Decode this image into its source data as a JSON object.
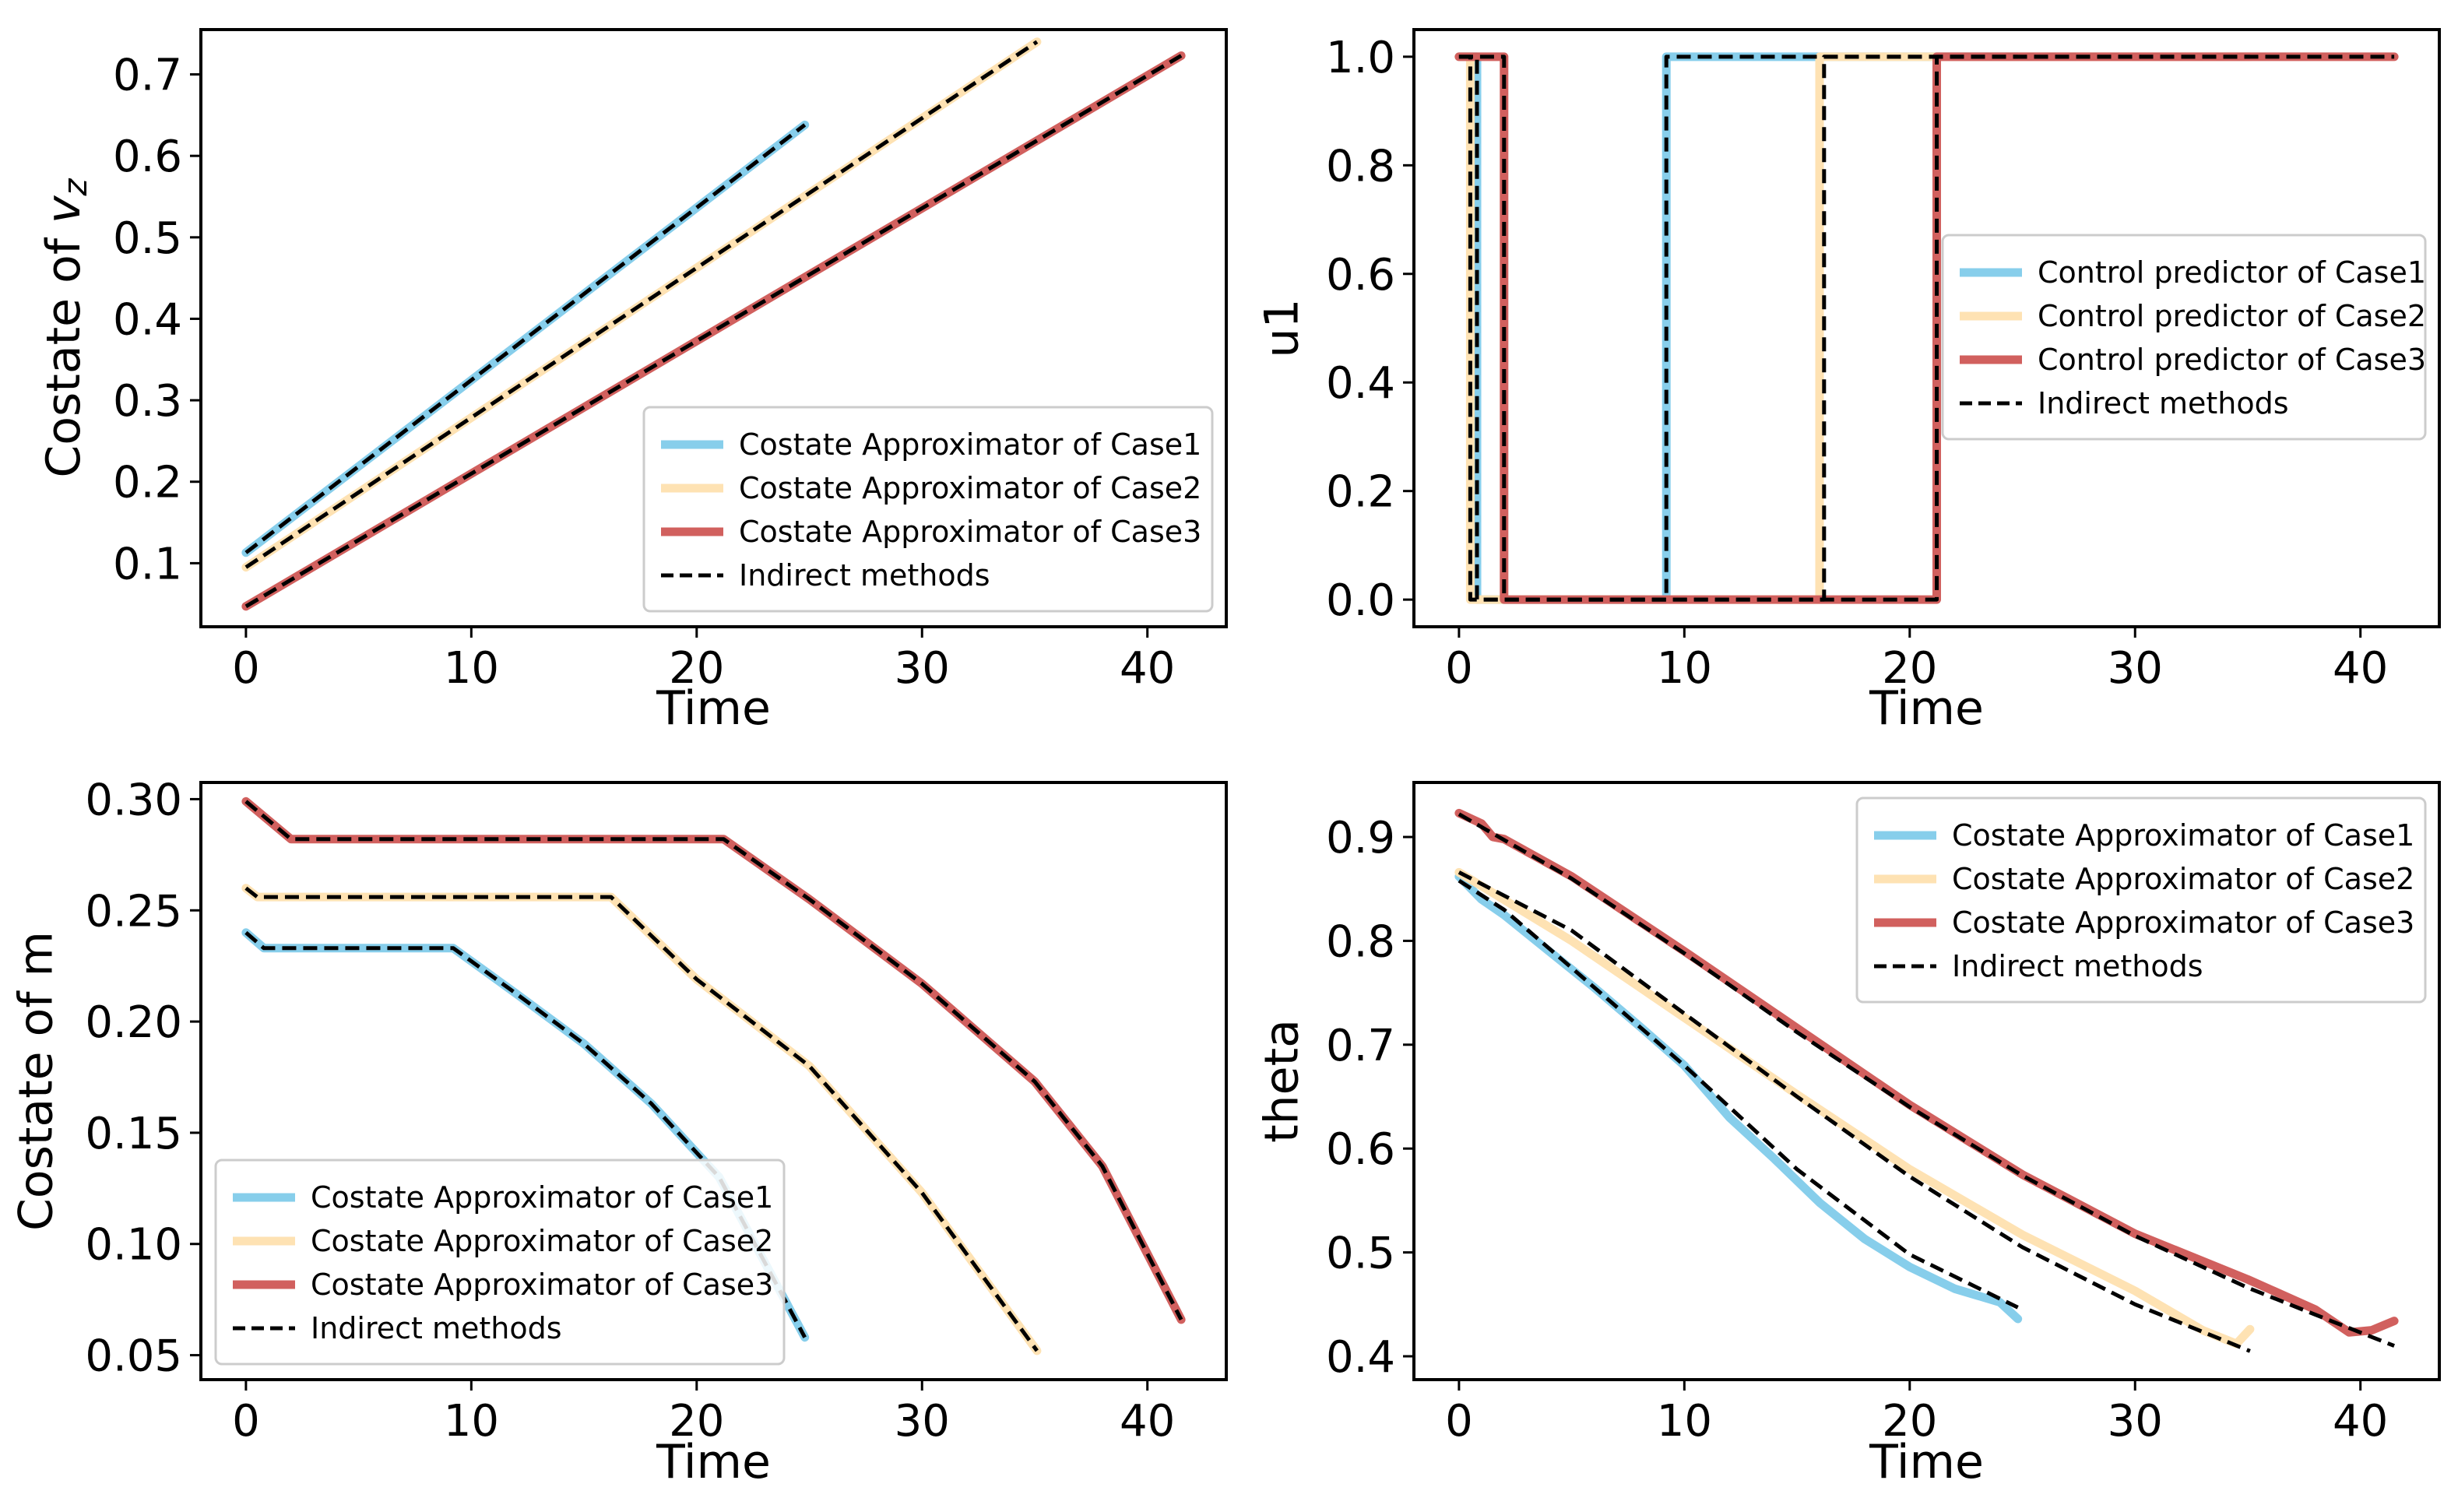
{
  "colors": {
    "case1": "#87ceeb",
    "case2": "#fee2b3",
    "case3": "#d1605e",
    "indirect": "#000000"
  },
  "chart_data": [
    {
      "type": "line",
      "ylabel": "Costate of v_z",
      "ylabel_main": "Costate of ",
      "ylabel_var": "v",
      "ylabel_sub": "z",
      "xlabel": "Time",
      "xlim": [
        -2,
        43.5
      ],
      "ylim": [
        0.022,
        0.755
      ],
      "xticks": [
        0,
        10,
        20,
        30,
        40
      ],
      "yticks": [
        0.1,
        0.2,
        0.3,
        0.4,
        0.5,
        0.6,
        0.7
      ],
      "legend_position": "lower-right",
      "legend": [
        "Costate Approximator of Case1",
        "Costate Approximator of Case2",
        "Costate Approximator of Case3",
        "Indirect methods"
      ],
      "series": [
        {
          "name": "Costate Approximator of Case1",
          "style": "case1",
          "x": [
            0,
            24.8
          ],
          "y": [
            0.113,
            0.638
          ]
        },
        {
          "name": "Costate Approximator of Case2",
          "style": "case2",
          "x": [
            0,
            35.1
          ],
          "y": [
            0.095,
            0.74
          ]
        },
        {
          "name": "Costate Approximator of Case3",
          "style": "case3",
          "x": [
            0,
            41.5
          ],
          "y": [
            0.047,
            0.723
          ]
        },
        {
          "name": "Indirect methods",
          "style": "dash",
          "x": [
            0,
            24.8
          ],
          "y": [
            0.113,
            0.638
          ]
        },
        {
          "name": "Indirect methods",
          "style": "dash",
          "x": [
            0,
            35.1
          ],
          "y": [
            0.095,
            0.74
          ]
        },
        {
          "name": "Indirect methods",
          "style": "dash",
          "x": [
            0,
            41.5
          ],
          "y": [
            0.047,
            0.723
          ]
        }
      ]
    },
    {
      "type": "line",
      "ylabel": "u1",
      "xlabel": "Time",
      "xlim": [
        -2,
        43.5
      ],
      "ylim": [
        -0.05,
        1.05
      ],
      "xticks": [
        0,
        10,
        20,
        30,
        40
      ],
      "yticks": [
        0.0,
        0.2,
        0.4,
        0.6,
        0.8,
        1.0
      ],
      "tick_format": "1f",
      "legend_position": "center-right",
      "legend": [
        "Control predictor of Case1",
        "Control predictor of Case2",
        "Control predictor of Case3",
        "Indirect methods"
      ],
      "series": [
        {
          "name": "Control predictor of Case1",
          "style": "case1",
          "x": [
            0,
            0.8,
            0.8,
            9.2,
            9.2,
            24.8
          ],
          "y": [
            1,
            1,
            0,
            0,
            1,
            1
          ]
        },
        {
          "name": "Control predictor of Case2",
          "style": "case2",
          "x": [
            0,
            0.5,
            0.5,
            16.0,
            16.0,
            35.1
          ],
          "y": [
            1,
            1,
            0,
            0,
            1,
            1
          ]
        },
        {
          "name": "Control predictor of Case3",
          "style": "case3",
          "x": [
            0,
            2.0,
            2.0,
            21.2,
            21.2,
            41.5
          ],
          "y": [
            1,
            1,
            0,
            0,
            1,
            1
          ]
        },
        {
          "name": "Indirect methods",
          "style": "dash",
          "x": [
            0,
            0.8,
            0.8,
            9.2,
            9.2,
            24.8
          ],
          "y": [
            1,
            1,
            0,
            0,
            1,
            1
          ]
        },
        {
          "name": "Indirect methods",
          "style": "dash",
          "x": [
            0,
            0.5,
            0.5,
            16.2,
            16.2,
            35.1
          ],
          "y": [
            1,
            1,
            0,
            0,
            1,
            1
          ]
        },
        {
          "name": "Indirect methods",
          "style": "dash",
          "x": [
            0,
            2.0,
            2.0,
            21.2,
            21.2,
            41.5
          ],
          "y": [
            1,
            1,
            0,
            0,
            1,
            1
          ]
        }
      ]
    },
    {
      "type": "line",
      "ylabel": "Costate of m",
      "xlabel": "Time",
      "xlim": [
        -2,
        43.5
      ],
      "ylim": [
        0.039,
        0.3075
      ],
      "xticks": [
        0,
        10,
        20,
        30,
        40
      ],
      "yticks": [
        0.05,
        0.1,
        0.15,
        0.2,
        0.25,
        0.3
      ],
      "tick_format": "2f",
      "legend_position": "lower-left",
      "legend": [
        "Costate Approximator of Case1",
        "Costate Approximator of Case2",
        "Costate Approximator of Case3",
        "Indirect methods"
      ],
      "series": [
        {
          "name": "Costate Approximator of Case1",
          "style": "case1",
          "x": [
            0,
            0.8,
            9.2,
            12,
            15,
            18,
            21,
            24.8
          ],
          "y": [
            0.24,
            0.233,
            0.233,
            0.2125,
            0.19,
            0.163,
            0.13,
            0.058
          ]
        },
        {
          "name": "Costate Approximator of Case2",
          "style": "case2",
          "x": [
            0,
            0.5,
            16.2,
            20,
            25,
            30,
            35.1
          ],
          "y": [
            0.26,
            0.256,
            0.256,
            0.219,
            0.18,
            0.123,
            0.052
          ]
        },
        {
          "name": "Costate Approximator of Case3",
          "style": "case3",
          "x": [
            0,
            2.0,
            21.2,
            25,
            30,
            35,
            38,
            41.5
          ],
          "y": [
            0.299,
            0.282,
            0.282,
            0.255,
            0.217,
            0.173,
            0.135,
            0.066
          ]
        },
        {
          "name": "Indirect methods",
          "style": "dash",
          "x": [
            0,
            0.8,
            9.2,
            12,
            15,
            18,
            21,
            24.8
          ],
          "y": [
            0.24,
            0.233,
            0.233,
            0.2125,
            0.19,
            0.163,
            0.13,
            0.058
          ]
        },
        {
          "name": "Indirect methods",
          "style": "dash",
          "x": [
            0,
            0.5,
            16.2,
            20,
            25,
            30,
            35.1
          ],
          "y": [
            0.26,
            0.256,
            0.256,
            0.219,
            0.18,
            0.123,
            0.052
          ]
        },
        {
          "name": "Indirect methods",
          "style": "dash",
          "x": [
            0,
            2.0,
            21.2,
            25,
            30,
            35,
            38,
            41.5
          ],
          "y": [
            0.299,
            0.282,
            0.282,
            0.255,
            0.217,
            0.173,
            0.135,
            0.066
          ]
        }
      ]
    },
    {
      "type": "line",
      "ylabel": "theta",
      "xlabel": "Time",
      "xlim": [
        -2,
        43.5
      ],
      "ylim": [
        0.3775,
        0.9525
      ],
      "xticks": [
        0,
        10,
        20,
        30,
        40
      ],
      "yticks": [
        0.4,
        0.5,
        0.6,
        0.7,
        0.8,
        0.9
      ],
      "tick_format": "1f",
      "legend_position": "upper-right",
      "legend": [
        "Costate Approximator of Case1",
        "Costate Approximator of Case2",
        "Costate Approximator of Case3",
        "Indirect methods"
      ],
      "series": [
        {
          "name": "Costate Approximator of Case1",
          "style": "case1",
          "x": [
            0,
            1,
            2,
            4,
            6,
            8,
            10,
            12,
            14,
            16,
            18,
            20,
            22,
            24,
            24.8
          ],
          "y": [
            0.862,
            0.84,
            0.825,
            0.79,
            0.755,
            0.718,
            0.68,
            0.63,
            0.59,
            0.548,
            0.513,
            0.486,
            0.465,
            0.452,
            0.436
          ]
        },
        {
          "name": "Costate Approximator of Case2",
          "style": "case2",
          "x": [
            0,
            5,
            10,
            15,
            20,
            25,
            30,
            33,
            34.5,
            35.1
          ],
          "y": [
            0.866,
            0.8,
            0.726,
            0.652,
            0.58,
            0.517,
            0.463,
            0.425,
            0.412,
            0.426
          ]
        },
        {
          "name": "Costate Approximator of Case3",
          "style": "case3",
          "x": [
            0,
            1,
            1.5,
            2,
            5,
            10,
            15,
            20,
            25,
            30,
            35,
            38,
            39.5,
            40.5,
            41.5
          ],
          "y": [
            0.923,
            0.913,
            0.9,
            0.898,
            0.862,
            0.79,
            0.716,
            0.642,
            0.575,
            0.518,
            0.474,
            0.445,
            0.423,
            0.425,
            0.434
          ]
        },
        {
          "name": "Indirect methods",
          "style": "dash",
          "x": [
            0,
            2,
            5,
            10,
            15,
            20,
            24.8
          ],
          "y": [
            0.858,
            0.83,
            0.774,
            0.68,
            0.58,
            0.498,
            0.447
          ]
        },
        {
          "name": "Indirect methods",
          "style": "dash",
          "x": [
            0,
            5,
            10,
            15,
            20,
            25,
            30,
            35.1
          ],
          "y": [
            0.866,
            0.81,
            0.73,
            0.65,
            0.573,
            0.505,
            0.45,
            0.405
          ]
        },
        {
          "name": "Indirect methods",
          "style": "dash",
          "x": [
            0,
            5,
            10,
            15,
            20,
            25,
            30,
            35,
            38,
            41.5
          ],
          "y": [
            0.922,
            0.86,
            0.788,
            0.712,
            0.64,
            0.574,
            0.516,
            0.466,
            0.44,
            0.41
          ]
        }
      ]
    }
  ]
}
